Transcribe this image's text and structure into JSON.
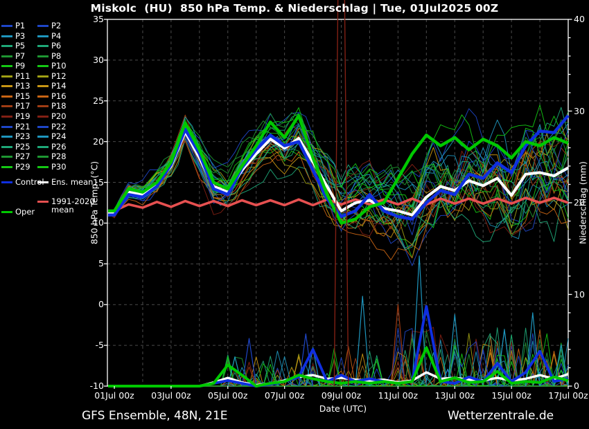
{
  "title": "Miskolc  (HU)  850 hPa Temp. & Niederschlag | Tue, 01Jul2025 00Z",
  "footer": {
    "left": "GFS Ensemble, 48N, 21E",
    "right": "Wetterzentrale.de"
  },
  "legend": {
    "members_col1": [
      "P1",
      "P3",
      "P5",
      "P7",
      "P9",
      "P11",
      "P13",
      "P15",
      "P17",
      "P19",
      "P21",
      "P23",
      "P25",
      "P27",
      "P29"
    ],
    "members_col2": [
      "P2",
      "P4",
      "P6",
      "P8",
      "P10",
      "P12",
      "P14",
      "P16",
      "P18",
      "P20",
      "P22",
      "P24",
      "P26",
      "P28",
      "P30"
    ],
    "control_label": "Control",
    "ens_mean_label": "Ens. mean",
    "clim_label_line1": "1991-2020",
    "clim_label_line2": "mean",
    "oper_label": "Oper"
  },
  "colors": {
    "background": "#000000",
    "foreground": "#ffffff",
    "grid": "#4a4a4a",
    "member_palette": [
      "#1e46c8",
      "#1e96be",
      "#1ea878",
      "#1e9632",
      "#14c814",
      "#a0a014",
      "#c89614",
      "#c86414",
      "#a03c14",
      "#822014"
    ],
    "control": "#0f2fe0",
    "ens_mean": "#ffffff",
    "oper": "#00c800",
    "clim_mean": "#e65050"
  },
  "chart_data": {
    "type": "line",
    "x_axis": {
      "label": "Date (UTC)",
      "tick_labels": [
        "01Jul 00z",
        "03Jul 00z",
        "05Jul 00z",
        "07Jul 00z",
        "09Jul 00z",
        "11Jul 00z",
        "13Jul 00z",
        "15Jul 00z",
        "17Jul 00z"
      ],
      "tick_hours": [
        0,
        48,
        96,
        144,
        192,
        240,
        288,
        336,
        384
      ],
      "gridline_every_hours": 24,
      "range_hours": [
        0,
        384
      ]
    },
    "y_left": {
      "label": "850 hPa Temp. (°C)",
      "min": -10,
      "max": 35,
      "ticks": [
        35,
        30,
        25,
        20,
        15,
        10,
        5,
        0,
        -5,
        -10
      ],
      "grid": "dashed"
    },
    "y_right": {
      "label": "Niederschlag (mm)",
      "min": 0,
      "max": 40,
      "ticks": [
        0,
        10,
        20,
        30,
        40
      ],
      "minor_tick_step": 2
    },
    "sample_step_hours": 12,
    "series": {
      "ens_mean_temp": [
        11.2,
        13.8,
        13.5,
        14.8,
        17.0,
        21.2,
        18.0,
        14.5,
        13.8,
        16.5,
        18.5,
        20.3,
        19.2,
        20.4,
        17.5,
        14.5,
        11.5,
        12.5,
        12.8,
        11.8,
        11.5,
        11.0,
        13.2,
        14.5,
        14.0,
        15.2,
        14.6,
        15.5,
        13.4,
        16.0,
        16.2,
        15.8,
        16.8
      ],
      "control_temp": [
        11.0,
        13.5,
        13.2,
        14.5,
        17.2,
        21.5,
        18.5,
        14.2,
        13.5,
        16.8,
        19.0,
        20.8,
        19.5,
        20.0,
        16.5,
        13.0,
        10.8,
        11.5,
        13.5,
        11.5,
        10.8,
        10.5,
        12.5,
        14.0,
        13.5,
        16.0,
        15.5,
        17.4,
        16.2,
        19.5,
        21.3,
        21.1,
        23.2
      ],
      "oper_temp": [
        11.5,
        14.2,
        13.8,
        15.0,
        17.5,
        22.3,
        19.0,
        15.0,
        14.2,
        17.0,
        19.5,
        22.4,
        20.5,
        23.2,
        18.0,
        13.5,
        10.0,
        10.5,
        12.0,
        12.5,
        15.5,
        18.5,
        20.8,
        19.5,
        20.5,
        19.0,
        20.3,
        19.5,
        18.0,
        20.0,
        19.5,
        20.5,
        19.8
      ],
      "clim_mean_temp": [
        11.5,
        12.3,
        11.9,
        12.6,
        12.0,
        12.7,
        12.1,
        12.7,
        12.1,
        12.8,
        12.2,
        12.8,
        12.2,
        12.9,
        12.2,
        12.9,
        12.3,
        12.9,
        12.3,
        12.9,
        12.3,
        13.0,
        12.3,
        13.0,
        12.4,
        13.0,
        12.4,
        13.0,
        12.4,
        13.1,
        12.5,
        13.1,
        12.5
      ],
      "ens_mean_precip": [
        0,
        0,
        0,
        0,
        0,
        0,
        0,
        0.4,
        0.9,
        0.4,
        0.1,
        0.3,
        0.6,
        1.0,
        1.2,
        0.8,
        0.9,
        0.7,
        0.6,
        0.7,
        0.4,
        0.6,
        1.5,
        0.8,
        0.9,
        0.7,
        0.6,
        0.9,
        0.6,
        0.8,
        1.2,
        0.8,
        1.3
      ],
      "control_precip": [
        0,
        0,
        0,
        0,
        0,
        0,
        0,
        0.3,
        0.6,
        0.3,
        0,
        0.2,
        0.5,
        1.0,
        4.0,
        0.5,
        1.2,
        0.5,
        0.8,
        0.5,
        0.3,
        0.5,
        8.7,
        0.5,
        0.3,
        1.0,
        0.5,
        2.5,
        0.5,
        1.5,
        3.8,
        0.5,
        0.8
      ],
      "oper_precip": [
        0,
        0,
        0,
        0,
        0,
        0,
        0,
        0.3,
        2.3,
        1.2,
        0,
        0.3,
        0.5,
        1.2,
        0.8,
        0.5,
        0.3,
        0.5,
        0.3,
        0.5,
        0.3,
        0.5,
        4.2,
        0.5,
        0.9,
        0.4,
        0.5,
        1.6,
        0.3,
        0.5,
        0.4,
        1.0,
        0.6
      ]
    },
    "ensemble": {
      "member_count": 30,
      "temp_spread_halfwidth": [
        0.5,
        0.9,
        1.1,
        1.3,
        1.4,
        1.5,
        1.6,
        1.8,
        1.9,
        2.0,
        2.0,
        2.1,
        2.2,
        2.3,
        2.5,
        2.8,
        3.0,
        3.0,
        3.0,
        3.1,
        3.5,
        3.8,
        4.2,
        4.5,
        4.5,
        4.7,
        4.8,
        5.0,
        5.0,
        5.2,
        5.4,
        5.5,
        5.6
      ]
    },
    "precip_spike_events": [
      {
        "hour": 192,
        "mm": 80,
        "color_index": 9
      },
      {
        "hour": 96,
        "mm": 2.8,
        "color_index": 3
      },
      {
        "hour": 102,
        "mm": 3.2,
        "color_index": 1
      },
      {
        "hour": 114,
        "mm": 5.2,
        "color_index": 0
      },
      {
        "hour": 162,
        "mm": 5.7,
        "color_index": 0
      },
      {
        "hour": 168,
        "mm": 4.2,
        "color_index": 1
      },
      {
        "hour": 210,
        "mm": 9.8,
        "color_index": 1
      },
      {
        "hour": 240,
        "mm": 8.9,
        "color_index": 8
      },
      {
        "hour": 258,
        "mm": 14.2,
        "color_index": 1
      },
      {
        "hour": 288,
        "mm": 7.8,
        "color_index": 1
      },
      {
        "hour": 312,
        "mm": 4.0,
        "color_index": 0
      },
      {
        "hour": 330,
        "mm": 6.2,
        "color_index": 1
      },
      {
        "hour": 354,
        "mm": 8.0,
        "color_index": 1
      },
      {
        "hour": 378,
        "mm": 4.5,
        "color_index": 1
      }
    ]
  }
}
